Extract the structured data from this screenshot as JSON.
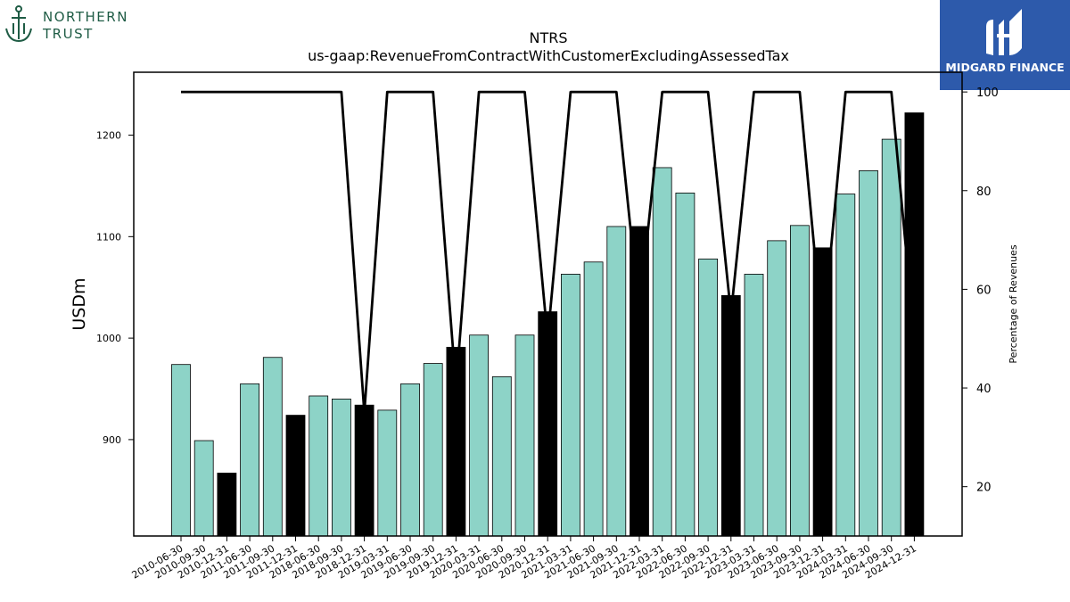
{
  "branding": {
    "left_logo_line1": "NORTHERN",
    "left_logo_line2": "TRUST",
    "left_logo_color": "#1f5c45",
    "right_logo_text": "MIDGARD FINANCE",
    "right_logo_bg": "#2d5aab"
  },
  "chart_data": {
    "type": "bar",
    "title": "NTRS",
    "subtitle": "us-gaap:RevenueFromContractWithCustomerExcludingAssessedTax",
    "ylabel": "USDm",
    "y2label": "Percentage of Revenues",
    "ylim": [
      805,
      1262
    ],
    "y2lim": [
      10,
      104
    ],
    "yticks": [
      900,
      1000,
      1100,
      1200
    ],
    "y2ticks": [
      20,
      40,
      60,
      80,
      100
    ],
    "categories": [
      "2010-06-30",
      "2010-09-30",
      "2010-12-31",
      "2011-06-30",
      "2011-09-30",
      "2011-12-31",
      "2018-06-30",
      "2018-09-30",
      "2018-12-31",
      "2019-03-31",
      "2019-06-30",
      "2019-09-30",
      "2019-12-31",
      "2020-03-31",
      "2020-06-30",
      "2020-09-30",
      "2020-12-31",
      "2021-03-31",
      "2021-06-30",
      "2021-09-30",
      "2021-12-31",
      "2022-03-31",
      "2022-06-30",
      "2022-09-30",
      "2022-12-31",
      "2023-03-31",
      "2023-06-30",
      "2023-09-30",
      "2023-12-31",
      "2024-03-31",
      "2024-06-30",
      "2024-09-30",
      "2024-12-31"
    ],
    "values": [
      974,
      899,
      867,
      955,
      981,
      924,
      943,
      940,
      934,
      929,
      955,
      975,
      991,
      1003,
      962,
      1003,
      1026,
      1063,
      1075,
      1110,
      1110,
      1168,
      1143,
      1078,
      1042,
      1063,
      1096,
      1111,
      1089,
      1142,
      1165,
      1196,
      1222
    ],
    "highlight": [
      false,
      false,
      true,
      false,
      false,
      true,
      false,
      false,
      true,
      false,
      false,
      false,
      true,
      false,
      false,
      false,
      true,
      false,
      false,
      false,
      true,
      false,
      false,
      false,
      true,
      false,
      false,
      false,
      true,
      false,
      false,
      false,
      true
    ],
    "line_values": [
      100,
      100,
      100,
      100,
      100,
      100,
      100,
      100,
      35,
      100,
      100,
      100,
      40,
      100,
      100,
      100,
      50,
      100,
      100,
      100,
      55,
      100,
      100,
      100,
      55,
      100,
      100,
      100,
      50,
      100,
      100,
      100,
      50
    ],
    "colors": {
      "bar": "#8dd3c7",
      "highlight": "#000000",
      "line": "#000000"
    }
  }
}
